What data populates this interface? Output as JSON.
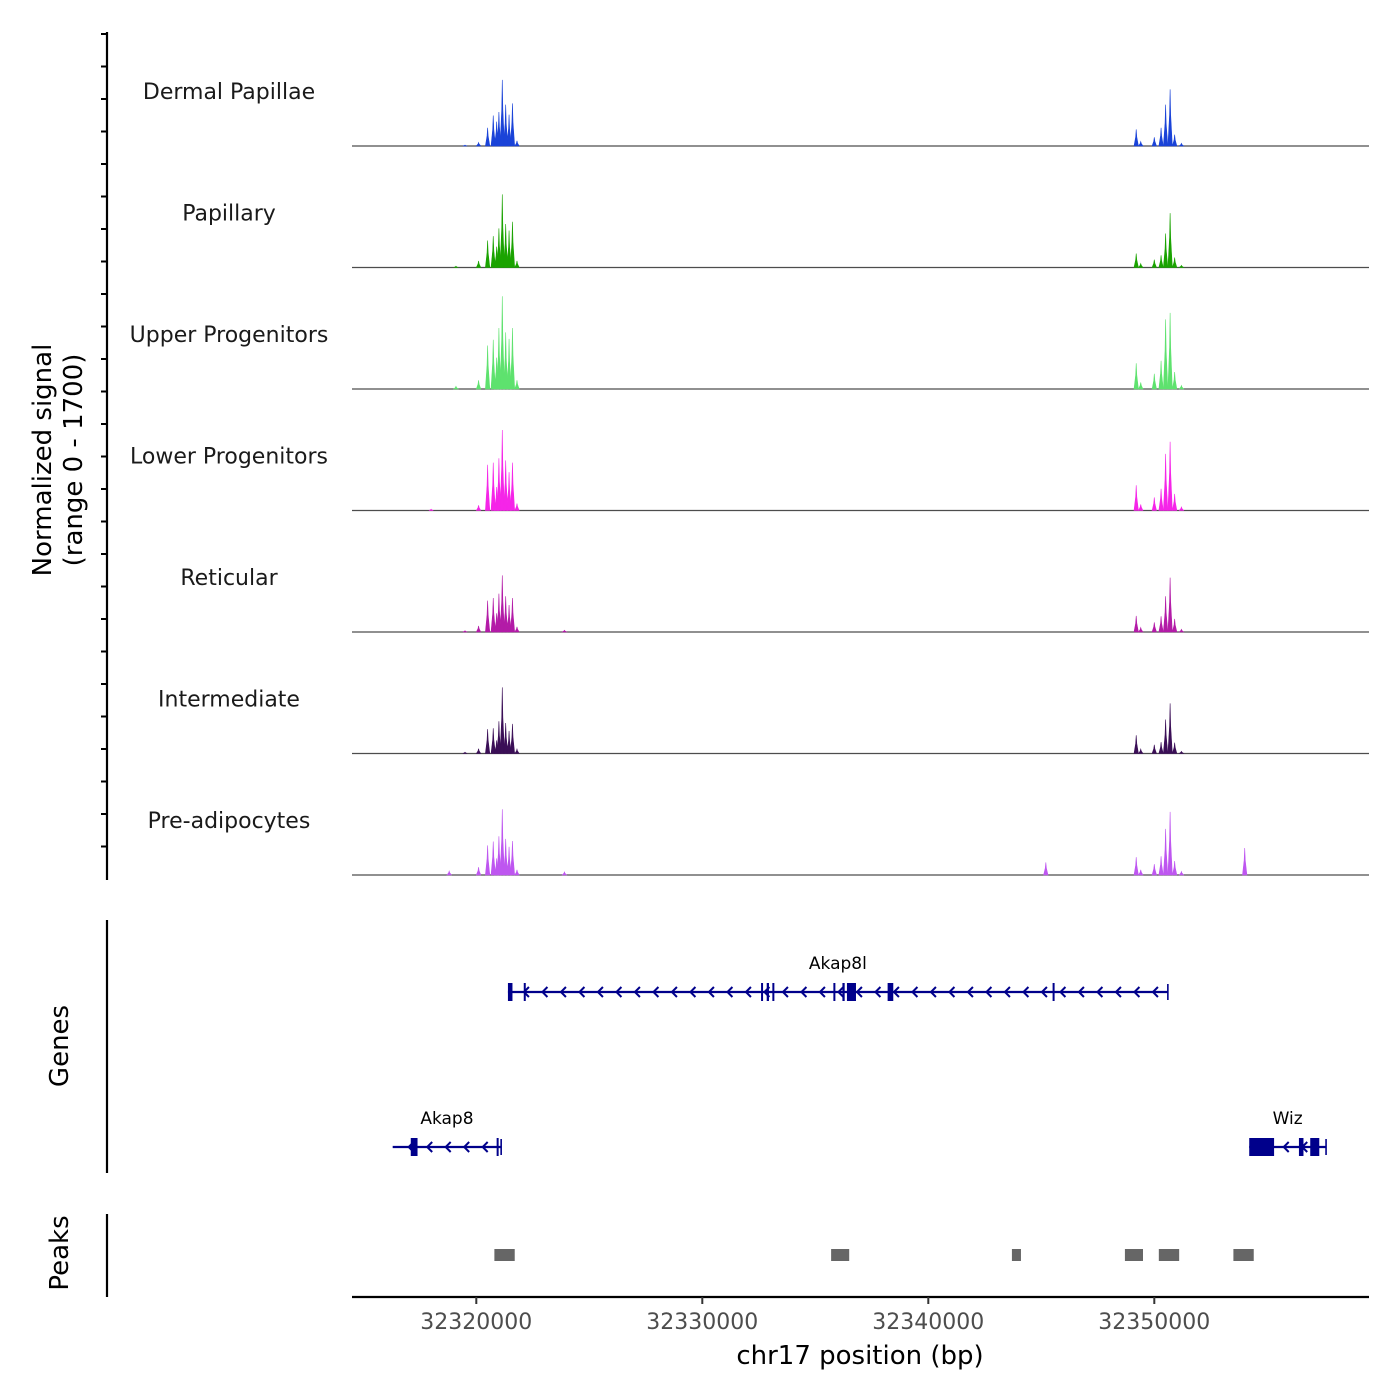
{
  "chart_data": {
    "type": "area",
    "chromosome": "chr17",
    "xlim": [
      32314500,
      32359500
    ],
    "xlabel": "chr17 position (bp)",
    "x_ticks": [
      32320000,
      32330000,
      32340000,
      32350000
    ],
    "x_tick_labels": [
      "32320000",
      "32330000",
      "32340000",
      "32350000"
    ],
    "coverage": {
      "ylabel_line1": "Normalized signal",
      "ylabel_line2": "(range 0 - 1700)",
      "ylim": [
        0,
        1700
      ],
      "peak_summits_bp": [
        32321200,
        32350750
      ],
      "series": [
        {
          "name": "Dermal Papillae",
          "color": "#1a43d8",
          "points": [
            [
              32319500,
              20
            ],
            [
              32320100,
              80
            ],
            [
              32320500,
              420
            ],
            [
              32320750,
              700
            ],
            [
              32320900,
              560
            ],
            [
              32321000,
              780
            ],
            [
              32321150,
              1520
            ],
            [
              32321300,
              950
            ],
            [
              32321450,
              720
            ],
            [
              32321600,
              980
            ],
            [
              32321800,
              120
            ],
            [
              32349200,
              380
            ],
            [
              32349400,
              100
            ],
            [
              32350000,
              200
            ],
            [
              32350300,
              420
            ],
            [
              32350500,
              950
            ],
            [
              32350700,
              1300
            ],
            [
              32350900,
              260
            ],
            [
              32351200,
              60
            ]
          ]
        },
        {
          "name": "Papillary",
          "color": "#1aa300",
          "points": [
            [
              32319100,
              30
            ],
            [
              32320100,
              150
            ],
            [
              32320500,
              620
            ],
            [
              32320750,
              720
            ],
            [
              32320900,
              480
            ],
            [
              32321000,
              900
            ],
            [
              32321150,
              1680
            ],
            [
              32321300,
              1000
            ],
            [
              32321450,
              850
            ],
            [
              32321600,
              1050
            ],
            [
              32321800,
              150
            ],
            [
              32349200,
              320
            ],
            [
              32349400,
              90
            ],
            [
              32350000,
              180
            ],
            [
              32350300,
              280
            ],
            [
              32350500,
              780
            ],
            [
              32350700,
              1250
            ],
            [
              32350900,
              230
            ],
            [
              32351200,
              50
            ]
          ]
        },
        {
          "name": "Upper Progenitors",
          "color": "#5ee26e",
          "points": [
            [
              32319100,
              60
            ],
            [
              32320100,
              200
            ],
            [
              32320500,
              1000
            ],
            [
              32320750,
              1130
            ],
            [
              32320900,
              720
            ],
            [
              32321000,
              1400
            ],
            [
              32321150,
              2130
            ],
            [
              32321300,
              1300
            ],
            [
              32321450,
              1150
            ],
            [
              32321600,
              1400
            ],
            [
              32321800,
              200
            ],
            [
              32349200,
              590
            ],
            [
              32349400,
              150
            ],
            [
              32350000,
              350
            ],
            [
              32350300,
              650
            ],
            [
              32350500,
              1600
            ],
            [
              32350700,
              1750
            ],
            [
              32350900,
              390
            ],
            [
              32351200,
              80
            ]
          ]
        },
        {
          "name": "Lower Progenitors",
          "color": "#f525e8",
          "points": [
            [
              32318000,
              30
            ],
            [
              32320100,
              120
            ],
            [
              32320500,
              1050
            ],
            [
              32320750,
              1100
            ],
            [
              32320900,
              540
            ],
            [
              32321000,
              1200
            ],
            [
              32321150,
              1850
            ],
            [
              32321300,
              1150
            ],
            [
              32321450,
              880
            ],
            [
              32321600,
              1100
            ],
            [
              32321800,
              160
            ],
            [
              32349200,
              580
            ],
            [
              32349400,
              140
            ],
            [
              32350000,
              300
            ],
            [
              32350300,
              500
            ],
            [
              32350500,
              1300
            ],
            [
              32350700,
              1580
            ],
            [
              32350900,
              380
            ],
            [
              32351200,
              80
            ]
          ]
        },
        {
          "name": "Reticular",
          "color": "#b31ba7",
          "points": [
            [
              32319500,
              30
            ],
            [
              32320100,
              140
            ],
            [
              32320500,
              720
            ],
            [
              32320750,
              780
            ],
            [
              32320900,
              430
            ],
            [
              32321000,
              880
            ],
            [
              32321150,
              1300
            ],
            [
              32321300,
              820
            ],
            [
              32321450,
              620
            ],
            [
              32321600,
              780
            ],
            [
              32321800,
              120
            ],
            [
              32323900,
              40
            ],
            [
              32349200,
              370
            ],
            [
              32349400,
              100
            ],
            [
              32350000,
              220
            ],
            [
              32350300,
              360
            ],
            [
              32350500,
              820
            ],
            [
              32350700,
              1250
            ],
            [
              32350900,
              300
            ],
            [
              32351200,
              60
            ]
          ]
        },
        {
          "name": "Intermediate",
          "color": "#3b0f57",
          "points": [
            [
              32319500,
              30
            ],
            [
              32320100,
              110
            ],
            [
              32320500,
              560
            ],
            [
              32320750,
              580
            ],
            [
              32320900,
              300
            ],
            [
              32321000,
              740
            ],
            [
              32321150,
              1520
            ],
            [
              32321300,
              700
            ],
            [
              32321450,
              520
            ],
            [
              32321600,
              680
            ],
            [
              32321800,
              100
            ],
            [
              32349200,
              420
            ],
            [
              32349400,
              100
            ],
            [
              32350000,
              200
            ],
            [
              32350300,
              260
            ],
            [
              32350500,
              780
            ],
            [
              32350700,
              1150
            ],
            [
              32350900,
              250
            ],
            [
              32351200,
              50
            ]
          ]
        },
        {
          "name": "Pre-adipocytes",
          "color": "#be56f0",
          "points": [
            [
              32318800,
              90
            ],
            [
              32320100,
              180
            ],
            [
              32320500,
              680
            ],
            [
              32320750,
              770
            ],
            [
              32320900,
              380
            ],
            [
              32321000,
              890
            ],
            [
              32321150,
              1510
            ],
            [
              32321300,
              830
            ],
            [
              32321450,
              650
            ],
            [
              32321600,
              780
            ],
            [
              32321800,
              120
            ],
            [
              32323900,
              70
            ],
            [
              32345200,
              290
            ],
            [
              32349200,
              410
            ],
            [
              32349400,
              120
            ],
            [
              32350000,
              250
            ],
            [
              32350300,
              430
            ],
            [
              32350500,
              1060
            ],
            [
              32350700,
              1450
            ],
            [
              32350900,
              320
            ],
            [
              32351200,
              80
            ],
            [
              32354000,
              620
            ]
          ]
        }
      ]
    },
    "genes": {
      "panel_label": "Genes",
      "color": "#00008b",
      "strand": "-",
      "items": [
        {
          "name": "Akap8l",
          "start": 32321400,
          "end": 32350600,
          "exons": [
            [
              32321400,
              32321600
            ],
            [
              32322100,
              32322160
            ],
            [
              32332600,
              32332650
            ],
            [
              32332850,
              32332950
            ],
            [
              32333100,
              32333180
            ],
            [
              32335800,
              32335870
            ],
            [
              32336200,
              32336300
            ],
            [
              32336400,
              32336800
            ],
            [
              32338200,
              32338450
            ],
            [
              32345500,
              32345560
            ]
          ]
        },
        {
          "name": "Akap8",
          "start": 32316300,
          "end": 32321100,
          "exons": [
            [
              32317100,
              32317400
            ],
            [
              32320900,
              32320980
            ]
          ]
        },
        {
          "name": "Wiz",
          "start": 32354200,
          "end": 32357600,
          "exons": [
            [
              32354200,
              32355300
            ],
            [
              32356400,
              32356600
            ],
            [
              32356900,
              32357300
            ]
          ]
        }
      ]
    },
    "peaks": {
      "panel_label": "Peaks",
      "color": "#666666",
      "regions": [
        [
          32320800,
          32321700
        ],
        [
          32335700,
          32336500
        ],
        [
          32343700,
          32344100
        ],
        [
          32348700,
          32349500
        ],
        [
          32350200,
          32351100
        ],
        [
          32353500,
          32354400
        ]
      ]
    }
  }
}
